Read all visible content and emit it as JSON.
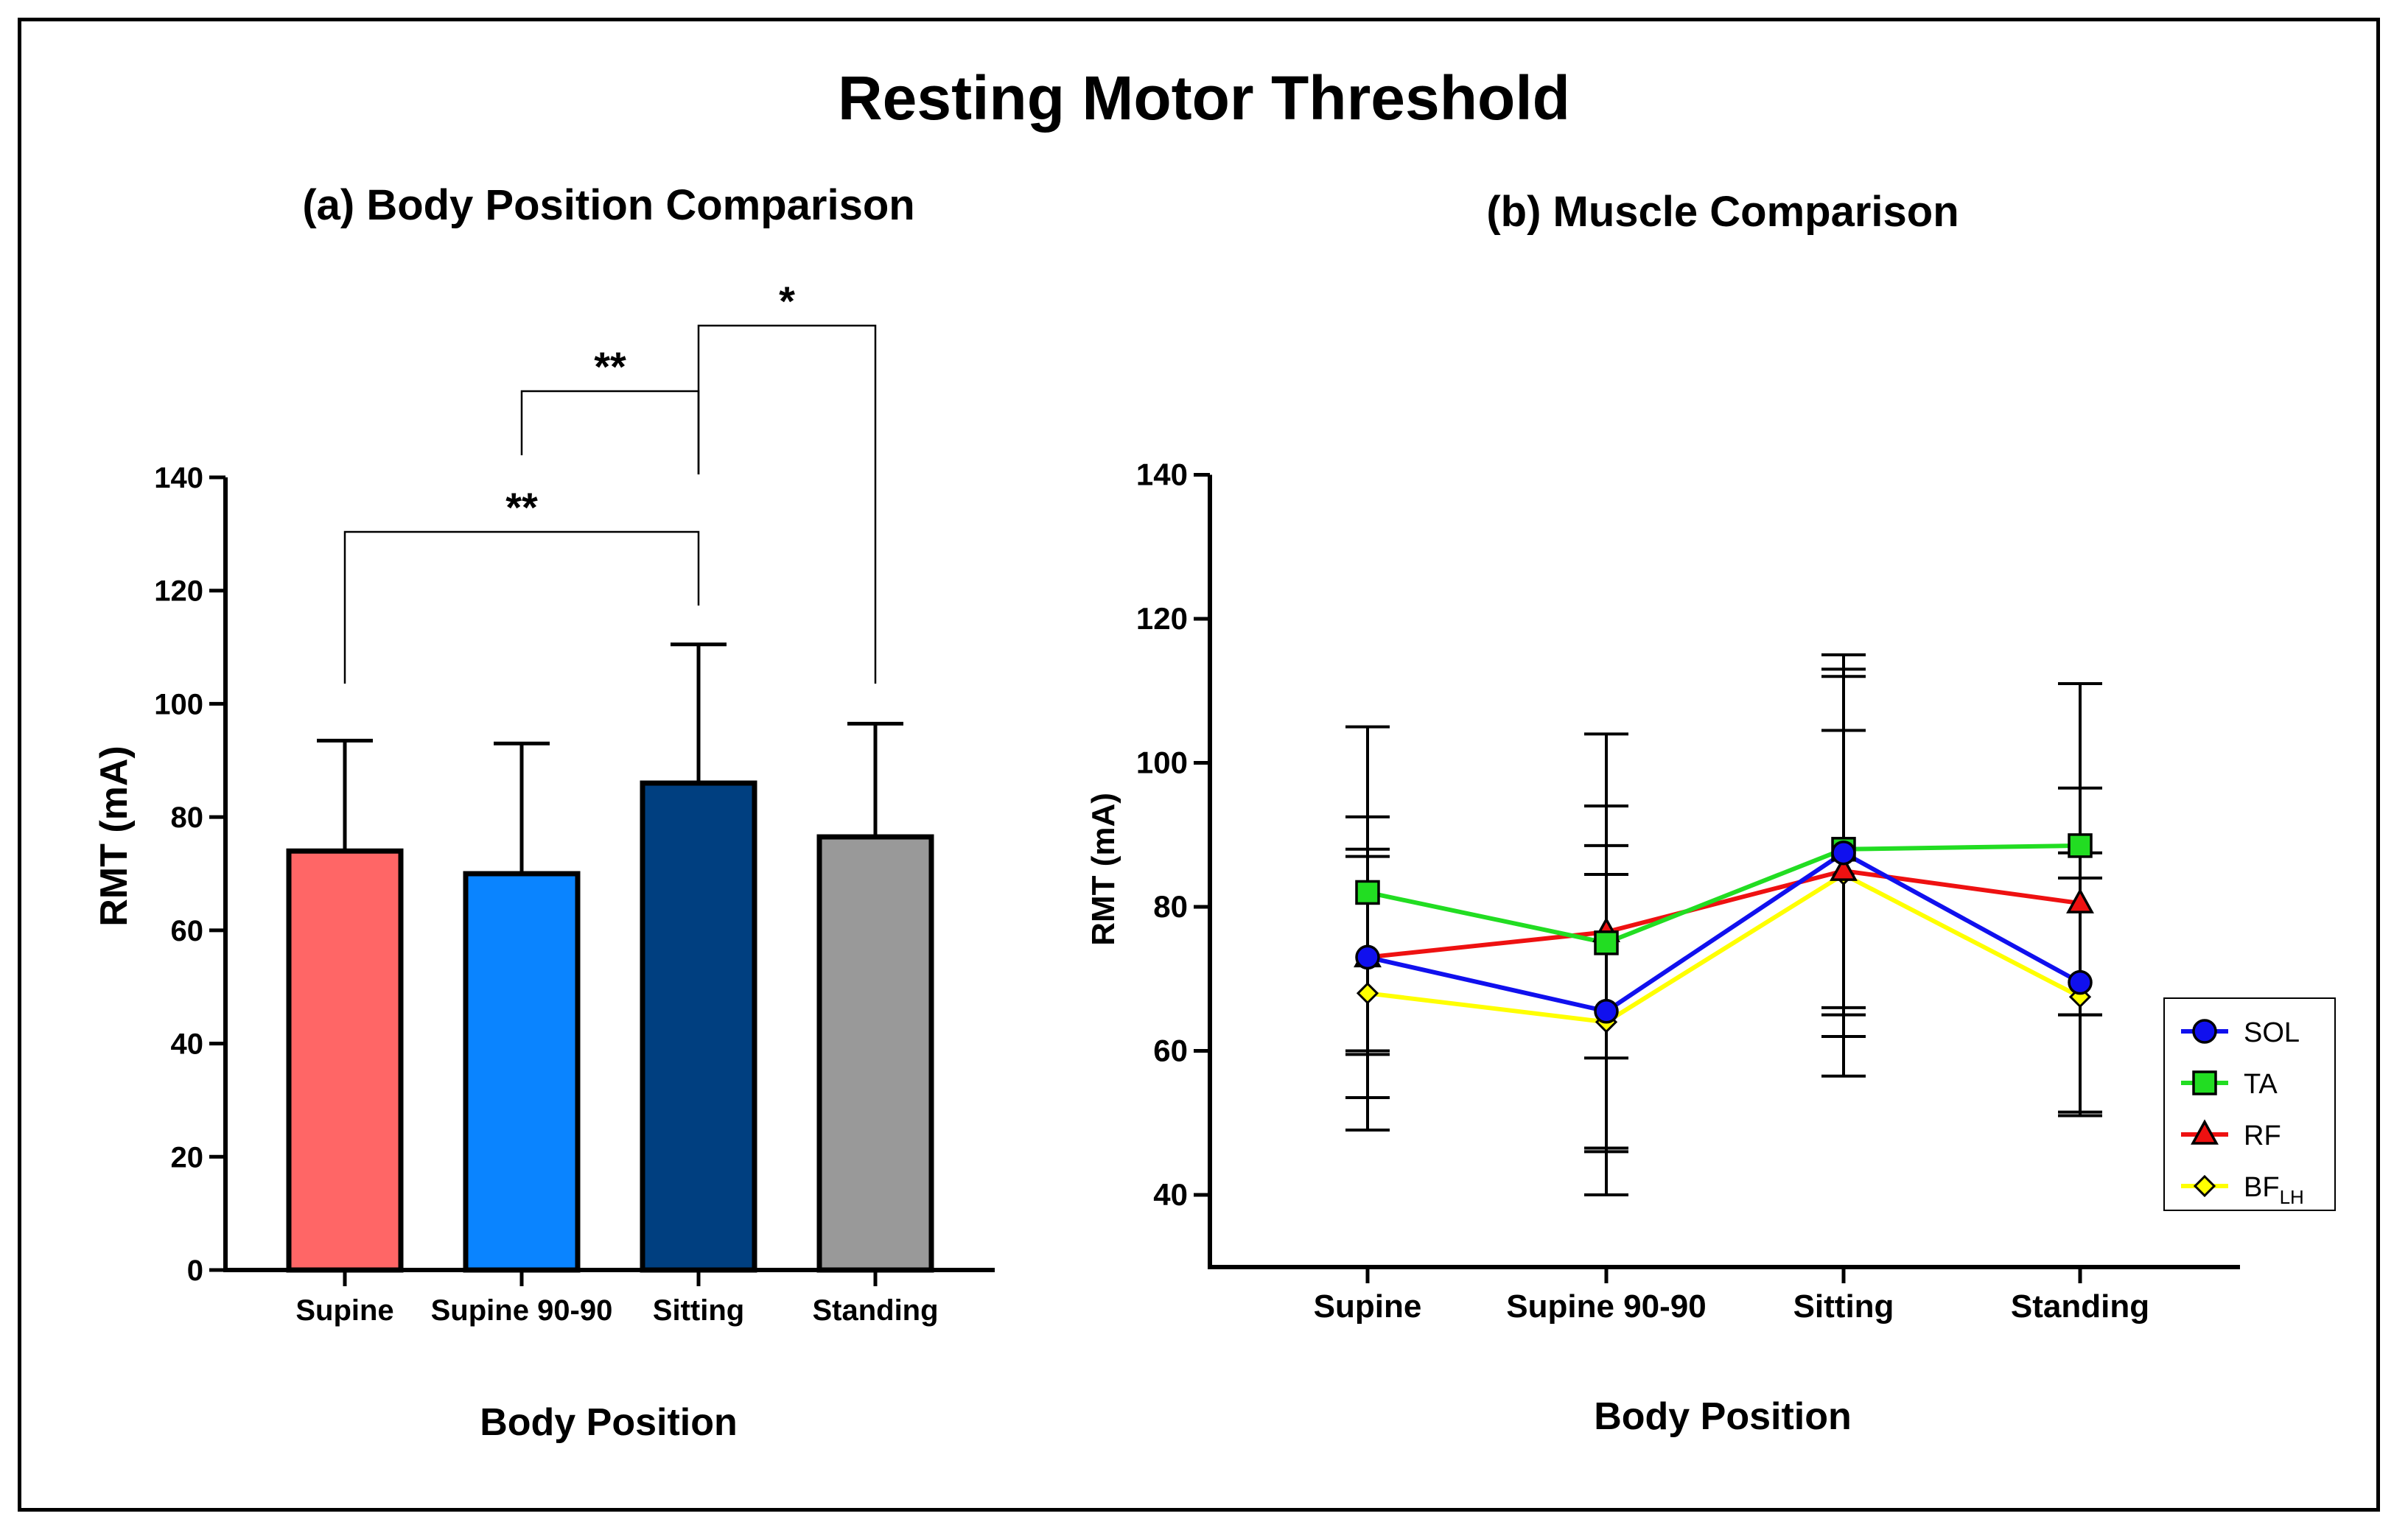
{
  "figure": {
    "title": "Resting Motor Threshold"
  },
  "chart_data": [
    {
      "type": "bar",
      "title": "(a) Body Position Comparison",
      "xlabel": "Body Position",
      "ylabel": "RMT (mA)",
      "ylim": [
        0,
        140
      ],
      "yticks": [
        0,
        20,
        40,
        60,
        80,
        100,
        120,
        140
      ],
      "categories": [
        "Supine",
        "Supine 90-90",
        "Sitting",
        "Standing"
      ],
      "values": [
        74,
        70,
        86,
        76.5
      ],
      "error_upper": [
        93.5,
        93,
        110.5,
        96.5
      ],
      "colors": [
        "#ff6666",
        "#0a84ff",
        "#003f80",
        "#999999"
      ],
      "significance": [
        {
          "from": "Supine",
          "to": "Sitting",
          "label": "**"
        },
        {
          "from": "Supine 90-90",
          "to": "Sitting",
          "label": "**"
        },
        {
          "from": "Sitting",
          "to": "Standing",
          "label": "*"
        }
      ]
    },
    {
      "type": "line",
      "title": "(b) Muscle Comparison",
      "xlabel": "Body Position",
      "ylabel": "RMT (mA)",
      "ylim": [
        33,
        140
      ],
      "yticks": [
        40,
        60,
        80,
        100,
        120,
        140
      ],
      "categories": [
        "Supine",
        "Supine 90-90",
        "Sitting",
        "Standing"
      ],
      "legend_position": "bottom-right",
      "series": [
        {
          "name": "SOL",
          "sub": "",
          "color": "#1010ee",
          "marker": "circle",
          "values": [
            73,
            65.5,
            87.5,
            69.5
          ],
          "err_low": [
            53.5,
            46.5,
            62,
            51.5
          ],
          "err_high": [
            92.5,
            84.5,
            113,
            87.5
          ]
        },
        {
          "name": "TA",
          "sub": "",
          "color": "#22dd22",
          "marker": "square",
          "values": [
            82,
            75,
            88,
            88.5
          ],
          "err_low": [
            59.5,
            46,
            66,
            65
          ],
          "err_high": [
            105,
            104,
            115,
            111
          ]
        },
        {
          "name": "RF",
          "sub": "",
          "color": "#ee1111",
          "marker": "triangle",
          "values": [
            73,
            76.5,
            85,
            80.5
          ],
          "err_low": [
            60,
            59,
            56.5,
            65
          ],
          "err_high": [
            87,
            94,
            112,
            96.5
          ]
        },
        {
          "name": "BF",
          "sub": "LH",
          "color": "#ffff00",
          "marker": "diamond",
          "values": [
            68,
            64,
            84.5,
            67.5
          ],
          "err_low": [
            49,
            40,
            65,
            51
          ],
          "err_high": [
            88,
            88.5,
            104.5,
            84
          ]
        }
      ]
    }
  ]
}
